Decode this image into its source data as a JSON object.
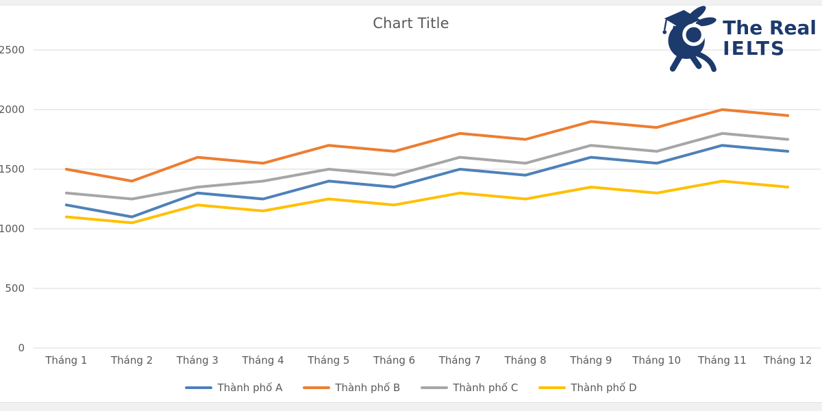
{
  "page": {
    "background": "#ffffff",
    "strip_color": "#f1f1f1"
  },
  "logo": {
    "line1": "The Real",
    "line2": "IELTS",
    "color": "#1d3a6d",
    "mascot": "rabbit-with-graduation-cap-icon"
  },
  "chart": {
    "title": "Chart Title"
  },
  "chart_data": {
    "type": "line",
    "title": "Chart Title",
    "categories": [
      "Tháng 1",
      "Tháng 2",
      "Tháng 3",
      "Tháng 4",
      "Tháng 5",
      "Tháng 6",
      "Tháng 7",
      "Tháng 8",
      "Tháng 9",
      "Tháng 10",
      "Tháng 11",
      "Tháng 12"
    ],
    "series": [
      {
        "name": "Thành phố A",
        "color": "#4e81b9",
        "values": [
          1200,
          1100,
          1300,
          1250,
          1400,
          1350,
          1500,
          1450,
          1600,
          1550,
          1700,
          1650
        ]
      },
      {
        "name": "Thành phố B",
        "color": "#ed7d31",
        "values": [
          1500,
          1400,
          1600,
          1550,
          1700,
          1650,
          1800,
          1750,
          1900,
          1850,
          2000,
          1950
        ]
      },
      {
        "name": "Thành phố C",
        "color": "#a6a6a6",
        "values": [
          1300,
          1250,
          1350,
          1400,
          1500,
          1450,
          1600,
          1550,
          1700,
          1650,
          1800,
          1750
        ]
      },
      {
        "name": "Thành phố D",
        "color": "#ffc000",
        "values": [
          1100,
          1050,
          1200,
          1150,
          1250,
          1200,
          1300,
          1250,
          1350,
          1300,
          1400,
          1350
        ]
      }
    ],
    "ylim": [
      0,
      2500
    ],
    "yticks": [
      0,
      500,
      1000,
      1500,
      2000,
      2500
    ],
    "grid": true,
    "legend_position": "bottom",
    "axis_text_color": "#595959",
    "gridline_color": "#d9d9d9",
    "title_color": "#595959"
  }
}
